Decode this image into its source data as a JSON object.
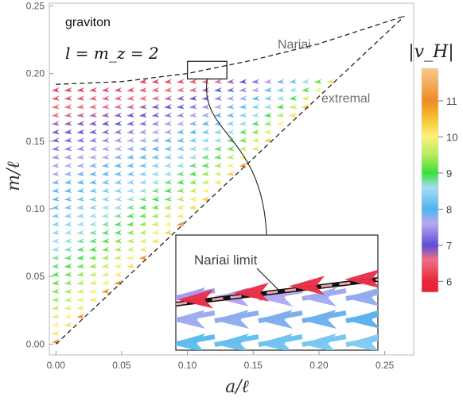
{
  "chart_data": {
    "type": "vector-field",
    "title": "graviton",
    "subtitle": "l = m_z = 2",
    "xlabel": "a/ℓ",
    "ylabel": "m/ℓ",
    "xlim": [
      -0.005,
      0.272
    ],
    "ylim": [
      -0.008,
      0.252
    ],
    "xticks": [
      "0.00",
      "0.05",
      "0.10",
      "0.15",
      "0.20",
      "0.25"
    ],
    "yticks": [
      "0.00",
      "0.05",
      "0.10",
      "0.15",
      "0.20",
      "0.25"
    ],
    "xtick_values": [
      0,
      0.05,
      0.1,
      0.15,
      0.2,
      0.25
    ],
    "ytick_values": [
      0,
      0.05,
      0.1,
      0.15,
      0.2,
      0.25
    ],
    "boundaries": [
      {
        "name": "Nariai",
        "style": "dashed",
        "points": [
          [
            0,
            0.192
          ],
          [
            0.05,
            0.194
          ],
          [
            0.1,
            0.2
          ],
          [
            0.15,
            0.21
          ],
          [
            0.2,
            0.222
          ],
          [
            0.265,
            0.2425
          ]
        ]
      },
      {
        "name": "extremal",
        "style": "dashed",
        "points": [
          [
            0,
            0
          ],
          [
            0.265,
            0.2425
          ]
        ]
      }
    ],
    "annotations": [
      "Nariai",
      "extremal"
    ],
    "zoom_box": {
      "x": [
        0.1,
        0.13
      ],
      "y": [
        0.196,
        0.209
      ]
    },
    "inset_label": "Nariai limit",
    "colorbar": {
      "label": "|v_H|",
      "ticks": [
        "6",
        "7",
        "8",
        "9",
        "10",
        "11"
      ],
      "tick_values": [
        6,
        7,
        8,
        9,
        10,
        11
      ],
      "range": [
        5.7,
        11.9
      ],
      "colors": [
        "#e8243a",
        "#ef6f86",
        "#5a4fd8",
        "#b7a8ef",
        "#4fb4ee",
        "#a6dcf6",
        "#38e03a",
        "#b8ea5c",
        "#fbf17a",
        "#f7c230",
        "#f08a26",
        "#f7c98c"
      ],
      "stops": [
        6,
        6.6,
        7,
        7.6,
        8,
        8.6,
        9,
        9.5,
        10,
        10.5,
        11,
        11.9
      ]
    },
    "grid": false
  }
}
